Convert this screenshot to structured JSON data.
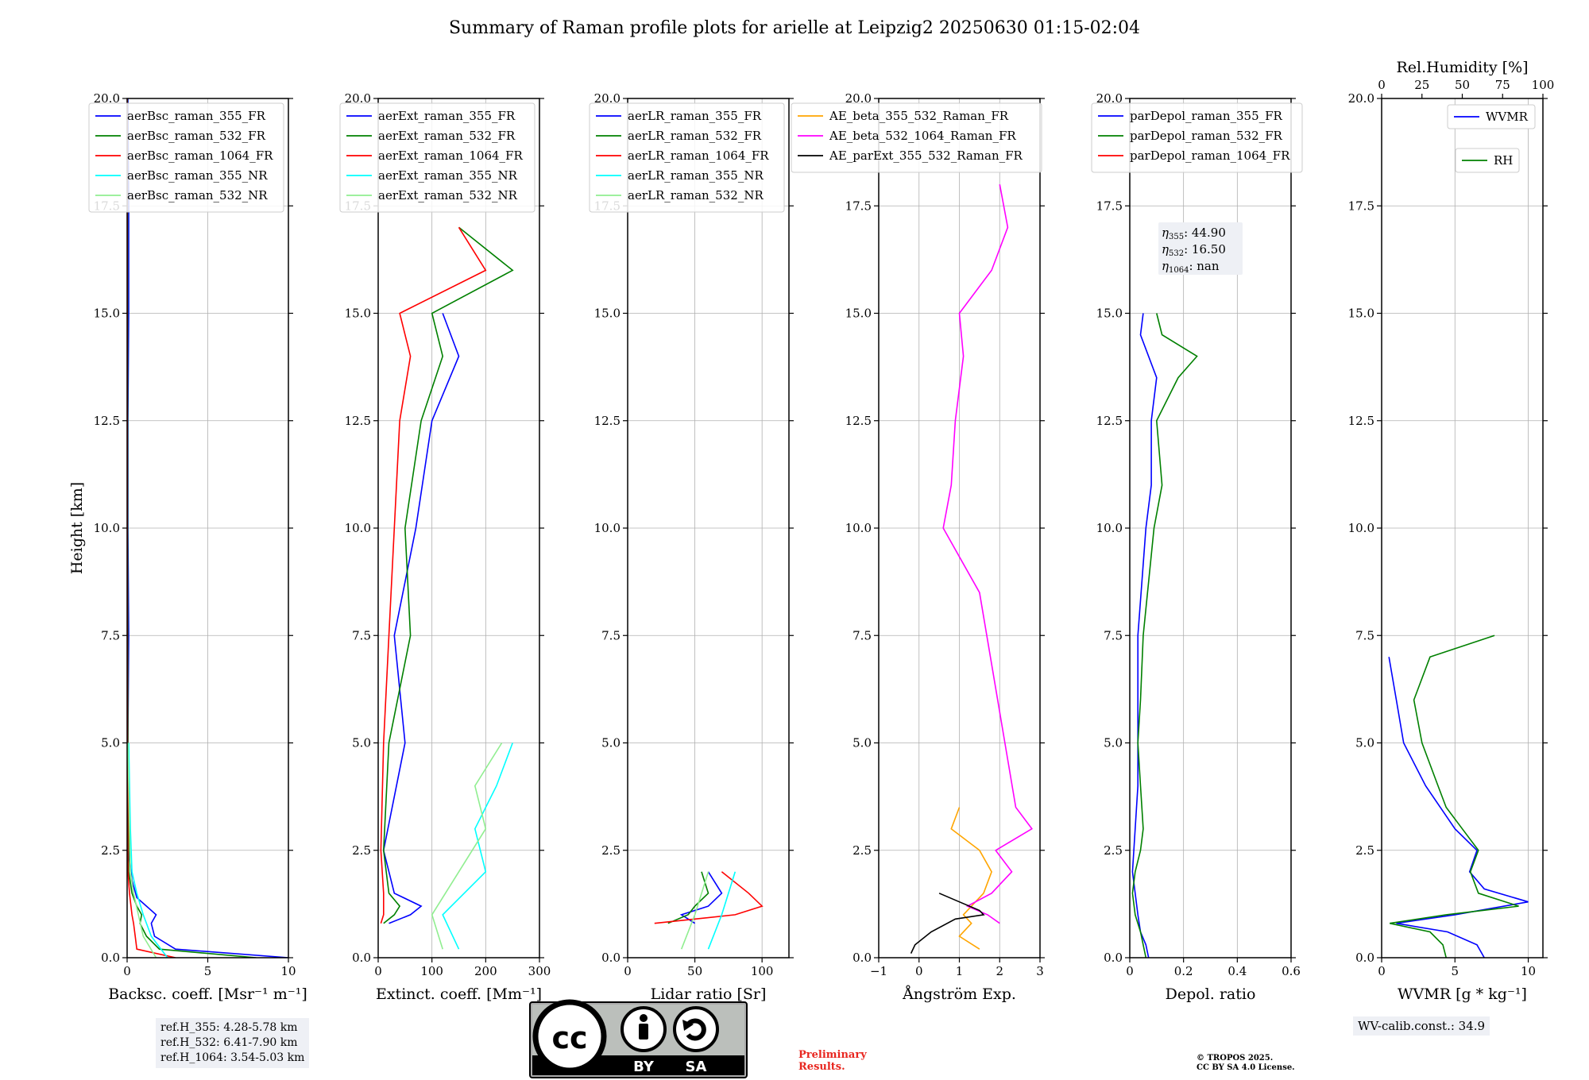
{
  "title": "Summary of Raman profile plots for arielle at Leipzig2 20250630 01:15-02:04",
  "ylabel": "Height [km]",
  "ref_heights": [
    "ref.H_355: 4.28-5.78 km",
    "ref.H_532: 6.41-7.90 km",
    "ref.H_1064: 3.54-5.03 km"
  ],
  "wv_calib": "WV-calib.const.: 34.9",
  "preliminary": [
    "Preliminary",
    "Results."
  ],
  "copyright": [
    "© TROPOS 2025.",
    "CC BY SA 4.0 License."
  ],
  "license_badge": {
    "by": "BY",
    "sa": "SA",
    "cc": "cc"
  },
  "eta_text": [
    {
      "sym": "η",
      "sub": "355",
      "val": ": 44.90"
    },
    {
      "sym": "η",
      "sub": "532",
      "val": ": 16.50"
    },
    {
      "sym": "η",
      "sub": "1064",
      "val": ": nan"
    }
  ],
  "colors": {
    "blue": "#0000ff",
    "green": "#008000",
    "red": "#ff0000",
    "cyan": "#00ffff",
    "lightgreen": "#90ee90",
    "orange": "#ffa500",
    "magenta": "#ff00ff",
    "black": "#000000",
    "grid": "#b0b0b0",
    "refbox": "#eef0f5",
    "prelim": "#e8261f"
  },
  "chart_data": [
    {
      "type": "line",
      "xlabel": "Backsc. coeff. [Msr⁻¹ m⁻¹]",
      "ylabel": "Height [km]",
      "xlim": [
        0,
        10
      ],
      "ylim": [
        0,
        20
      ],
      "xticks": [
        0,
        5,
        10
      ],
      "yticks": [
        0,
        2.5,
        5,
        7.5,
        10,
        12.5,
        15,
        17.5,
        20
      ],
      "grid": true,
      "legend": "top-left",
      "series": [
        {
          "name": "aerBsc_raman_355_FR",
          "color": "blue",
          "y": [
            0,
            0.2,
            0.5,
            0.8,
            1.0,
            1.2,
            1.4,
            1.8,
            2.5,
            5,
            7.5,
            10,
            12.5,
            15,
            17.5,
            20
          ],
          "x": [
            10,
            3.0,
            1.7,
            1.5,
            1.8,
            1.2,
            0.6,
            0.3,
            0.1,
            0.05,
            0.1,
            0.05,
            0.05,
            0.1,
            0.1,
            0.05
          ]
        },
        {
          "name": "aerBsc_raman_532_FR",
          "color": "green",
          "y": [
            0,
            0.2,
            0.5,
            0.8,
            1.0,
            1.2,
            1.5,
            2.0,
            5,
            10,
            15,
            20
          ],
          "x": [
            8,
            2.0,
            1.2,
            0.8,
            0.9,
            0.6,
            0.3,
            0.1,
            0.05,
            0.03,
            0.03,
            0.02
          ]
        },
        {
          "name": "aerBsc_raman_1064_FR",
          "color": "red",
          "y": [
            0,
            0.2,
            0.5,
            0.8,
            1.0,
            1.5,
            2.0,
            5,
            10,
            15,
            20
          ],
          "x": [
            3,
            0.6,
            0.5,
            0.4,
            0.3,
            0.15,
            0.05,
            0.02,
            0.01,
            0.01,
            0.01
          ]
        },
        {
          "name": "aerBsc_raman_355_NR",
          "color": "cyan",
          "y": [
            0,
            0.5,
            1.0,
            1.5,
            2.0,
            3.0,
            4.0,
            5.0
          ],
          "x": [
            2.5,
            1.5,
            1.0,
            0.6,
            0.3,
            0.2,
            0.15,
            0.1
          ]
        },
        {
          "name": "aerBsc_raman_532_NR",
          "color": "lightgreen",
          "y": [
            0,
            0.5,
            1.0,
            1.5,
            2.0,
            3.0,
            4.0,
            5.0
          ],
          "x": [
            1.8,
            1.0,
            0.7,
            0.4,
            0.2,
            0.15,
            0.1,
            0.05
          ]
        }
      ]
    },
    {
      "type": "line",
      "xlabel": "Extinct. coeff. [Mm⁻¹]",
      "ylabel": "",
      "xlim": [
        0,
        300
      ],
      "ylim": [
        0,
        20
      ],
      "xticks": [
        0,
        100,
        200,
        300
      ],
      "yticks": [
        0,
        2.5,
        5,
        7.5,
        10,
        12.5,
        15,
        17.5,
        20
      ],
      "grid": true,
      "legend": "top-left",
      "series": [
        {
          "name": "aerExt_raman_355_FR",
          "color": "blue",
          "y": [
            0.8,
            1.0,
            1.2,
            1.5,
            2.5,
            5.0,
            7.5,
            10,
            12.5,
            14.0,
            15.0
          ],
          "x": [
            20,
            60,
            80,
            30,
            10,
            50,
            30,
            70,
            100,
            150,
            120
          ]
        },
        {
          "name": "aerExt_raman_532_FR",
          "color": "green",
          "y": [
            0.8,
            1.0,
            1.2,
            1.5,
            2.5,
            5.0,
            7.5,
            10,
            12.5,
            14.0,
            15.0,
            16.0,
            17.0
          ],
          "x": [
            10,
            30,
            40,
            20,
            10,
            20,
            60,
            50,
            80,
            120,
            100,
            250,
            150
          ]
        },
        {
          "name": "aerExt_raman_1064_FR",
          "color": "red",
          "y": [
            0.8,
            1.0,
            1.5,
            2.5,
            5.0,
            7.5,
            10,
            12.5,
            14.0,
            15.0,
            16.0,
            17.0
          ],
          "x": [
            5,
            10,
            10,
            5,
            10,
            20,
            30,
            40,
            60,
            40,
            200,
            150
          ]
        },
        {
          "name": "aerExt_raman_355_NR",
          "color": "cyan",
          "y": [
            0.2,
            1.0,
            2.0,
            3.0,
            4.0,
            5.0
          ],
          "x": [
            150,
            120,
            200,
            180,
            220,
            250
          ]
        },
        {
          "name": "aerExt_raman_532_NR",
          "color": "lightgreen",
          "y": [
            0.2,
            1.0,
            2.0,
            3.0,
            4.0,
            5.0
          ],
          "x": [
            120,
            100,
            150,
            200,
            180,
            230
          ]
        }
      ]
    },
    {
      "type": "line",
      "xlabel": "Lidar ratio [Sr]",
      "ylabel": "",
      "xlim": [
        0,
        120
      ],
      "ylim": [
        0,
        20
      ],
      "xticks": [
        0,
        50,
        100
      ],
      "yticks": [
        0,
        2.5,
        5,
        7.5,
        10,
        12.5,
        15,
        17.5,
        20
      ],
      "grid": true,
      "legend": "top-left",
      "series": [
        {
          "name": "aerLR_raman_355_FR",
          "color": "blue",
          "y": [
            0.8,
            1.0,
            1.2,
            1.5,
            2.0
          ],
          "x": [
            50,
            40,
            60,
            70,
            60
          ]
        },
        {
          "name": "aerLR_raman_532_FR",
          "color": "green",
          "y": [
            0.8,
            1.0,
            1.2,
            1.5,
            2.0
          ],
          "x": [
            30,
            45,
            50,
            60,
            55
          ]
        },
        {
          "name": "aerLR_raman_1064_FR",
          "color": "red",
          "y": [
            0.8,
            1.0,
            1.2,
            1.5,
            2.0
          ],
          "x": [
            20,
            80,
            100,
            90,
            70
          ]
        },
        {
          "name": "aerLR_raman_355_NR",
          "color": "cyan",
          "y": [
            0.2,
            1.0,
            2.0
          ],
          "x": [
            60,
            70,
            80
          ]
        },
        {
          "name": "aerLR_raman_532_NR",
          "color": "lightgreen",
          "y": [
            0.2,
            1.0,
            2.0
          ],
          "x": [
            40,
            50,
            60
          ]
        }
      ]
    },
    {
      "type": "line",
      "xlabel": "Ångström Exp.",
      "ylabel": "",
      "xlim": [
        -1,
        3
      ],
      "ylim": [
        0,
        20
      ],
      "xticks": [
        -1,
        0,
        1,
        2,
        3
      ],
      "yticks": [
        0,
        2.5,
        5,
        7.5,
        10,
        12.5,
        15,
        17.5,
        20
      ],
      "grid": true,
      "legend": "top-right",
      "series": [
        {
          "name": "AE_beta_355_532_Raman_FR",
          "color": "orange",
          "y": [
            0.2,
            0.5,
            0.8,
            1.0,
            1.5,
            2.0,
            2.5,
            3.0,
            3.5
          ],
          "x": [
            1.5,
            1.0,
            1.3,
            1.1,
            1.6,
            1.8,
            1.5,
            0.8,
            1.0
          ]
        },
        {
          "name": "AE_beta_532_1064_Raman_FR",
          "color": "magenta",
          "y": [
            0.8,
            1.0,
            1.2,
            1.5,
            2.0,
            2.5,
            3.0,
            3.5,
            8.5,
            10,
            11,
            12.5,
            14,
            15,
            16,
            17,
            18
          ],
          "x": [
            2.0,
            1.7,
            1.2,
            1.8,
            2.3,
            1.9,
            2.8,
            2.4,
            1.5,
            0.6,
            0.8,
            0.9,
            1.1,
            1.0,
            1.8,
            2.2,
            2.0
          ]
        },
        {
          "name": "AE_parExt_355_532_Raman_FR",
          "color": "black",
          "y": [
            0.1,
            0.3,
            0.6,
            0.9,
            1.0,
            1.1,
            1.3,
            1.5
          ],
          "x": [
            -0.2,
            -0.1,
            0.3,
            0.9,
            1.6,
            1.5,
            1.0,
            0.5
          ]
        }
      ]
    },
    {
      "type": "line",
      "xlabel": "Depol. ratio",
      "ylabel": "",
      "xlim": [
        0,
        0.6
      ],
      "ylim": [
        0,
        20
      ],
      "xticks": [
        0,
        0.2,
        0.4,
        0.6
      ],
      "yticks": [
        0,
        2.5,
        5,
        7.5,
        10,
        12.5,
        15,
        17.5,
        20
      ],
      "grid": true,
      "legend": "top-left",
      "series": [
        {
          "name": "parDepol_raman_355_FR",
          "color": "blue",
          "y": [
            0,
            0.3,
            0.6,
            1.0,
            1.5,
            2.0,
            3.0,
            4.0,
            5.0,
            7.5,
            10,
            11,
            12.5,
            13.5,
            14.5,
            15.0
          ],
          "x": [
            0.07,
            0.06,
            0.04,
            0.03,
            0.02,
            0.01,
            0.02,
            0.03,
            0.03,
            0.03,
            0.06,
            0.08,
            0.08,
            0.1,
            0.04,
            0.05
          ]
        },
        {
          "name": "parDepol_raman_532_FR",
          "color": "green",
          "y": [
            0,
            0.3,
            0.6,
            1.0,
            1.5,
            2.0,
            2.5,
            3.0,
            4.0,
            5.0,
            6.0,
            7.5,
            10,
            11,
            12.5,
            13.5,
            14.0,
            14.5,
            15.0
          ],
          "x": [
            0.06,
            0.05,
            0.04,
            0.02,
            0.01,
            0.02,
            0.04,
            0.05,
            0.04,
            0.03,
            0.04,
            0.05,
            0.09,
            0.12,
            0.1,
            0.18,
            0.25,
            0.12,
            0.1
          ]
        },
        {
          "name": "parDepol_raman_1064_FR",
          "color": "red",
          "y": [],
          "x": []
        }
      ]
    },
    {
      "type": "line",
      "xlabel": "WVMR [g * kg⁻¹]",
      "ylabel": "",
      "x2label": "Rel.Humidity [%]",
      "xlim": [
        0,
        11
      ],
      "ylim": [
        0,
        20
      ],
      "x2lim": [
        0,
        100
      ],
      "xticks": [
        0,
        5,
        10
      ],
      "x2ticks": [
        0,
        25,
        50,
        75,
        100
      ],
      "yticks": [
        0,
        2.5,
        5,
        7.5,
        10,
        12.5,
        15,
        17.5,
        20
      ],
      "grid": true,
      "legend": "top-right",
      "series": [
        {
          "name": "WVMR",
          "color": "blue",
          "y": [
            0,
            0.3,
            0.6,
            0.8,
            1.0,
            1.3,
            1.6,
            2.0,
            2.5,
            3.0,
            3.5,
            4.0,
            5.0,
            6.0,
            7.0
          ],
          "x": [
            7.0,
            6.5,
            4.5,
            1.0,
            5.0,
            10.0,
            7.0,
            6.0,
            6.5,
            5.0,
            4.0,
            3.0,
            1.5,
            1.0,
            0.5
          ]
        },
        {
          "name": "RH",
          "axis": "top",
          "color": "green",
          "y": [
            0,
            0.3,
            0.6,
            0.8,
            1.0,
            1.2,
            1.5,
            2.0,
            2.5,
            3.0,
            3.5,
            4.0,
            5.0,
            6.0,
            7.0,
            7.5
          ],
          "x": [
            40,
            38,
            30,
            5,
            40,
            85,
            60,
            55,
            60,
            50,
            40,
            35,
            25,
            20,
            30,
            70
          ]
        }
      ]
    }
  ]
}
